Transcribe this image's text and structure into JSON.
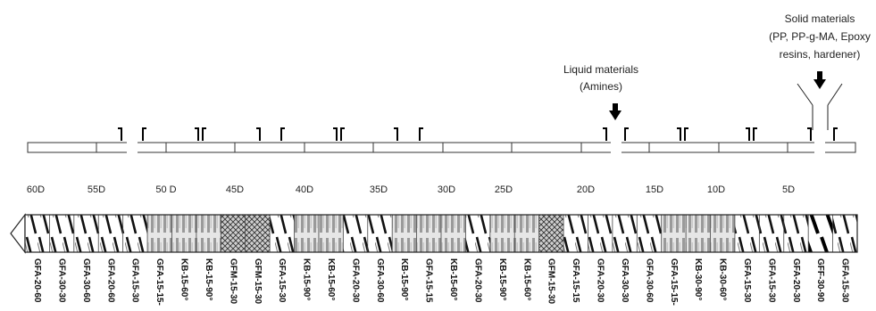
{
  "annotations": {
    "solid": {
      "lines": [
        "Solid materials",
        "(PP, PP-g-MA, Epoxy",
        "resins, hardener)"
      ]
    },
    "liquid": {
      "lines": [
        "Liquid materials",
        "(Amines)"
      ]
    }
  },
  "barrel": {
    "scale_labels": [
      "60D",
      "55D",
      "50 D",
      "45D",
      "40D",
      "35D",
      "30D",
      "25D",
      "20D",
      "15D",
      "10D",
      "5D"
    ]
  },
  "screw": {
    "elements": [
      {
        "label": "GFA-20-60",
        "pattern": "conveying"
      },
      {
        "label": "GFA-30-30",
        "pattern": "conveying"
      },
      {
        "label": "GFA-30-60",
        "pattern": "conveying"
      },
      {
        "label": "GFA-20-60",
        "pattern": "conveying"
      },
      {
        "label": "GFA-15-30",
        "pattern": "conveying"
      },
      {
        "label": "GFA-15-15-",
        "pattern": "kneading"
      },
      {
        "label": "KB-15-60°",
        "pattern": "kneading"
      },
      {
        "label": "KB-15-90°",
        "pattern": "kneading"
      },
      {
        "label": "GFM-15-30",
        "pattern": "mixing"
      },
      {
        "label": "GFM-15-30",
        "pattern": "mixing"
      },
      {
        "label": "GFA-15-30",
        "pattern": "conveying"
      },
      {
        "label": "KB-15-90°",
        "pattern": "kneading"
      },
      {
        "label": "KB-15-60°",
        "pattern": "kneading"
      },
      {
        "label": "GFA-20-30",
        "pattern": "conveying"
      },
      {
        "label": "GFA-30-60",
        "pattern": "conveying"
      },
      {
        "label": "KB-15-90°",
        "pattern": "kneading"
      },
      {
        "label": "GFA-15-15",
        "pattern": "kneading"
      },
      {
        "label": "KB-15-60°",
        "pattern": "kneading"
      },
      {
        "label": "GFA-20-30",
        "pattern": "conveying"
      },
      {
        "label": "KB-15-90°",
        "pattern": "kneading"
      },
      {
        "label": "KB-15-60°",
        "pattern": "kneading"
      },
      {
        "label": "GFM-15-30",
        "pattern": "mixing"
      },
      {
        "label": "GFA-15-15",
        "pattern": "conveying"
      },
      {
        "label": "GFA-20-30",
        "pattern": "conveying"
      },
      {
        "label": "GFA-30-30",
        "pattern": "conveying"
      },
      {
        "label": "GFA-30-60",
        "pattern": "conveying"
      },
      {
        "label": "GFA-15-15-",
        "pattern": "kneading"
      },
      {
        "label": "KB-30-90°",
        "pattern": "kneading"
      },
      {
        "label": "KB-30-60°",
        "pattern": "kneading"
      },
      {
        "label": "GFA-15-30",
        "pattern": "conveying"
      },
      {
        "label": "GFA-15-30",
        "pattern": "conveying"
      },
      {
        "label": "GFA-20-30",
        "pattern": "conveying"
      },
      {
        "label": "GFF-30-90",
        "pattern": "feed"
      },
      {
        "label": "GFA-15-30",
        "pattern": "conveying"
      }
    ]
  }
}
